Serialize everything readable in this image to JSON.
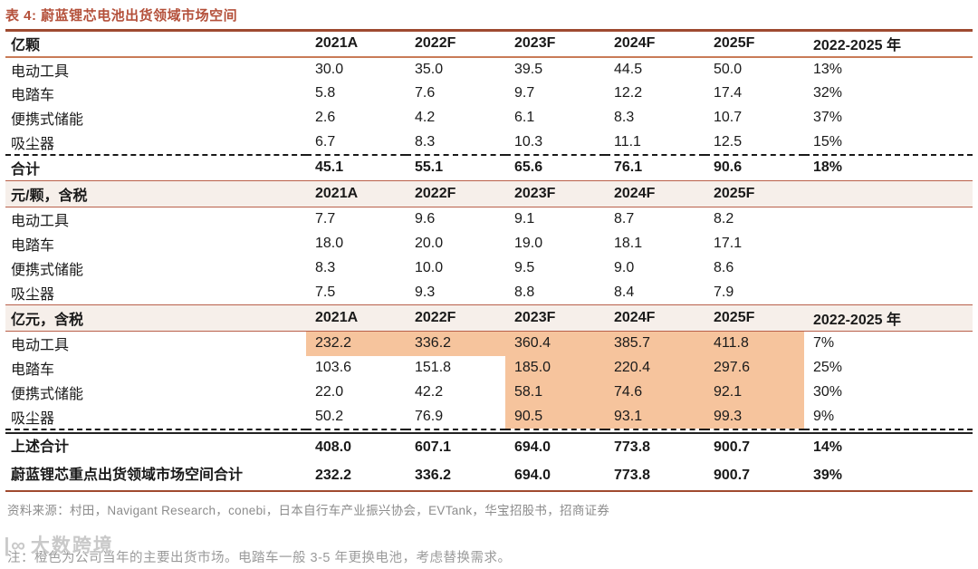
{
  "title": "表 4: 蔚蓝锂芯电池出货领域市场空间",
  "colors": {
    "accent_brown": "#B4503A",
    "highlight_orange": "#F6C49D",
    "band_pink": "#F6EFEA",
    "muted_gray": "#8C8C8C"
  },
  "table": {
    "year_columns": [
      "2021A",
      "2022F",
      "2023F",
      "2024F",
      "2025F"
    ],
    "growth_column": "2022-2025 年",
    "sections": [
      {
        "unit_label": "亿颗",
        "growth_header": "2022-2025 年",
        "rows": [
          {
            "label": "电动工具",
            "values": [
              "30.0",
              "35.0",
              "39.5",
              "44.5",
              "50.0"
            ],
            "growth": "13%",
            "highlight": []
          },
          {
            "label": "电踏车",
            "values": [
              "5.8",
              "7.6",
              "9.7",
              "12.2",
              "17.4"
            ],
            "growth": "32%",
            "highlight": []
          },
          {
            "label": "便携式储能",
            "values": [
              "2.6",
              "4.2",
              "6.1",
              "8.3",
              "10.7"
            ],
            "growth": "37%",
            "highlight": []
          },
          {
            "label": "吸尘器",
            "values": [
              "6.7",
              "8.3",
              "10.3",
              "11.1",
              "12.5"
            ],
            "growth": "15%",
            "highlight": []
          }
        ],
        "total": {
          "label": "合计",
          "values": [
            "45.1",
            "55.1",
            "65.6",
            "76.1",
            "90.6"
          ],
          "growth": "18%"
        }
      },
      {
        "unit_label": "元/颗，含税",
        "growth_header": "",
        "rows": [
          {
            "label": "电动工具",
            "values": [
              "7.7",
              "9.6",
              "9.1",
              "8.7",
              "8.2"
            ],
            "growth": "",
            "highlight": []
          },
          {
            "label": "电踏车",
            "values": [
              "18.0",
              "20.0",
              "19.0",
              "18.1",
              "17.1"
            ],
            "growth": "",
            "highlight": []
          },
          {
            "label": "便携式储能",
            "values": [
              "8.3",
              "10.0",
              "9.5",
              "9.0",
              "8.6"
            ],
            "growth": "",
            "highlight": []
          },
          {
            "label": "吸尘器",
            "values": [
              "7.5",
              "9.3",
              "8.8",
              "8.4",
              "7.9"
            ],
            "growth": "",
            "highlight": []
          }
        ],
        "total": null
      },
      {
        "unit_label": "亿元，含税",
        "growth_header": "2022-2025 年",
        "rows": [
          {
            "label": "电动工具",
            "values": [
              "232.2",
              "336.2",
              "360.4",
              "385.7",
              "411.8"
            ],
            "growth": "7%",
            "highlight": [
              0,
              1,
              2,
              3,
              4
            ]
          },
          {
            "label": "电踏车",
            "values": [
              "103.6",
              "151.8",
              "185.0",
              "220.4",
              "297.6"
            ],
            "growth": "25%",
            "highlight": [
              2,
              3,
              4
            ]
          },
          {
            "label": "便携式储能",
            "values": [
              "22.0",
              "42.2",
              "58.1",
              "74.6",
              "92.1"
            ],
            "growth": "30%",
            "highlight": [
              2,
              3,
              4
            ]
          },
          {
            "label": "吸尘器",
            "values": [
              "50.2",
              "76.9",
              "90.5",
              "93.1",
              "99.3"
            ],
            "growth": "9%",
            "highlight": [
              2,
              3,
              4
            ]
          }
        ],
        "total": null
      }
    ],
    "summary_rows": [
      {
        "label": "上述合计",
        "values": [
          "408.0",
          "607.1",
          "694.0",
          "773.8",
          "900.7"
        ],
        "growth": "14%"
      },
      {
        "label": "蔚蓝锂芯重点出货领域市场空间合计",
        "values": [
          "232.2",
          "336.2",
          "694.0",
          "773.8",
          "900.7"
        ],
        "growth": "39%"
      }
    ]
  },
  "source": "资料来源：村田，Navigant Research，conebi，日本自行车产业振兴协会，EVTank，华宝招股书，招商证券",
  "note": "注：橙色为公司当年的主要出货市场。电踏车一般 3-5 年更换电池，考虑替换需求。",
  "watermark": {
    "logo": "|∞",
    "text": "大数跨境"
  }
}
